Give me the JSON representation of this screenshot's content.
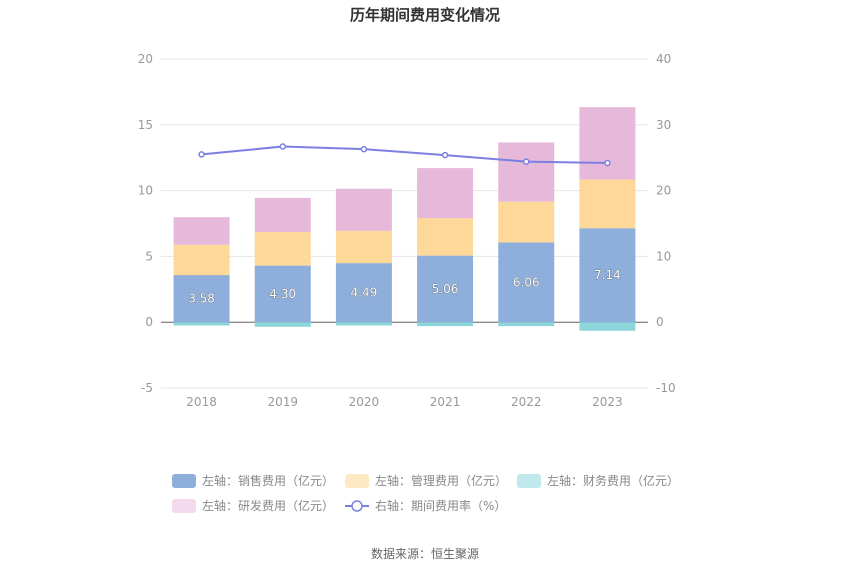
{
  "chart_data": {
    "type": "bar",
    "title": "历年期间费用变化情况",
    "categories": [
      "2018",
      "2019",
      "2020",
      "2021",
      "2022",
      "2023"
    ],
    "series": [
      {
        "name": "左轴：销售费用（亿元）",
        "axis": "left",
        "kind": "bar",
        "color": "#8eaedb",
        "values": [
          3.58,
          4.3,
          4.49,
          5.06,
          6.06,
          7.14
        ],
        "labels": [
          "3.58",
          "4.30",
          "4.49",
          "5.06",
          "6.06",
          "7.14"
        ]
      },
      {
        "name": "左轴：管理费用（亿元）",
        "axis": "left",
        "kind": "bar",
        "color": "#fdd899",
        "legend_color": "#fde9c3",
        "values": [
          2.3,
          2.55,
          2.45,
          2.85,
          3.1,
          3.7
        ]
      },
      {
        "name": "左轴：财务费用（亿元）",
        "axis": "left",
        "kind": "bar",
        "color": "#8dd5da",
        "legend_color": "#bfe9ec",
        "values": [
          -0.25,
          -0.35,
          -0.25,
          -0.3,
          -0.3,
          -0.65
        ]
      },
      {
        "name": "左轴：研发费用（亿元）",
        "axis": "left",
        "kind": "bar",
        "color": "#e6b9da",
        "legend_color": "#f3dbed",
        "values": [
          2.1,
          2.6,
          3.2,
          3.8,
          4.5,
          5.5
        ]
      },
      {
        "name": "右轴：期间费用率（%）",
        "axis": "right",
        "kind": "line",
        "color": "#7b7fe0",
        "values": [
          25.5,
          26.7,
          26.3,
          25.4,
          24.4,
          24.2
        ]
      }
    ],
    "y_left": {
      "min": -5,
      "max": 20,
      "ticks": [
        "-5",
        "0",
        "5",
        "10",
        "15",
        "20"
      ],
      "tick_values": [
        -5,
        0,
        5,
        10,
        15,
        20
      ]
    },
    "y_right": {
      "min": -10,
      "max": 40,
      "ticks": [
        "-10",
        "0",
        "10",
        "20",
        "30",
        "40"
      ],
      "tick_values": [
        -10,
        0,
        10,
        20,
        30,
        40
      ]
    },
    "grid": true,
    "legend_position": "bottom"
  },
  "source": "数据来源：恒生聚源"
}
